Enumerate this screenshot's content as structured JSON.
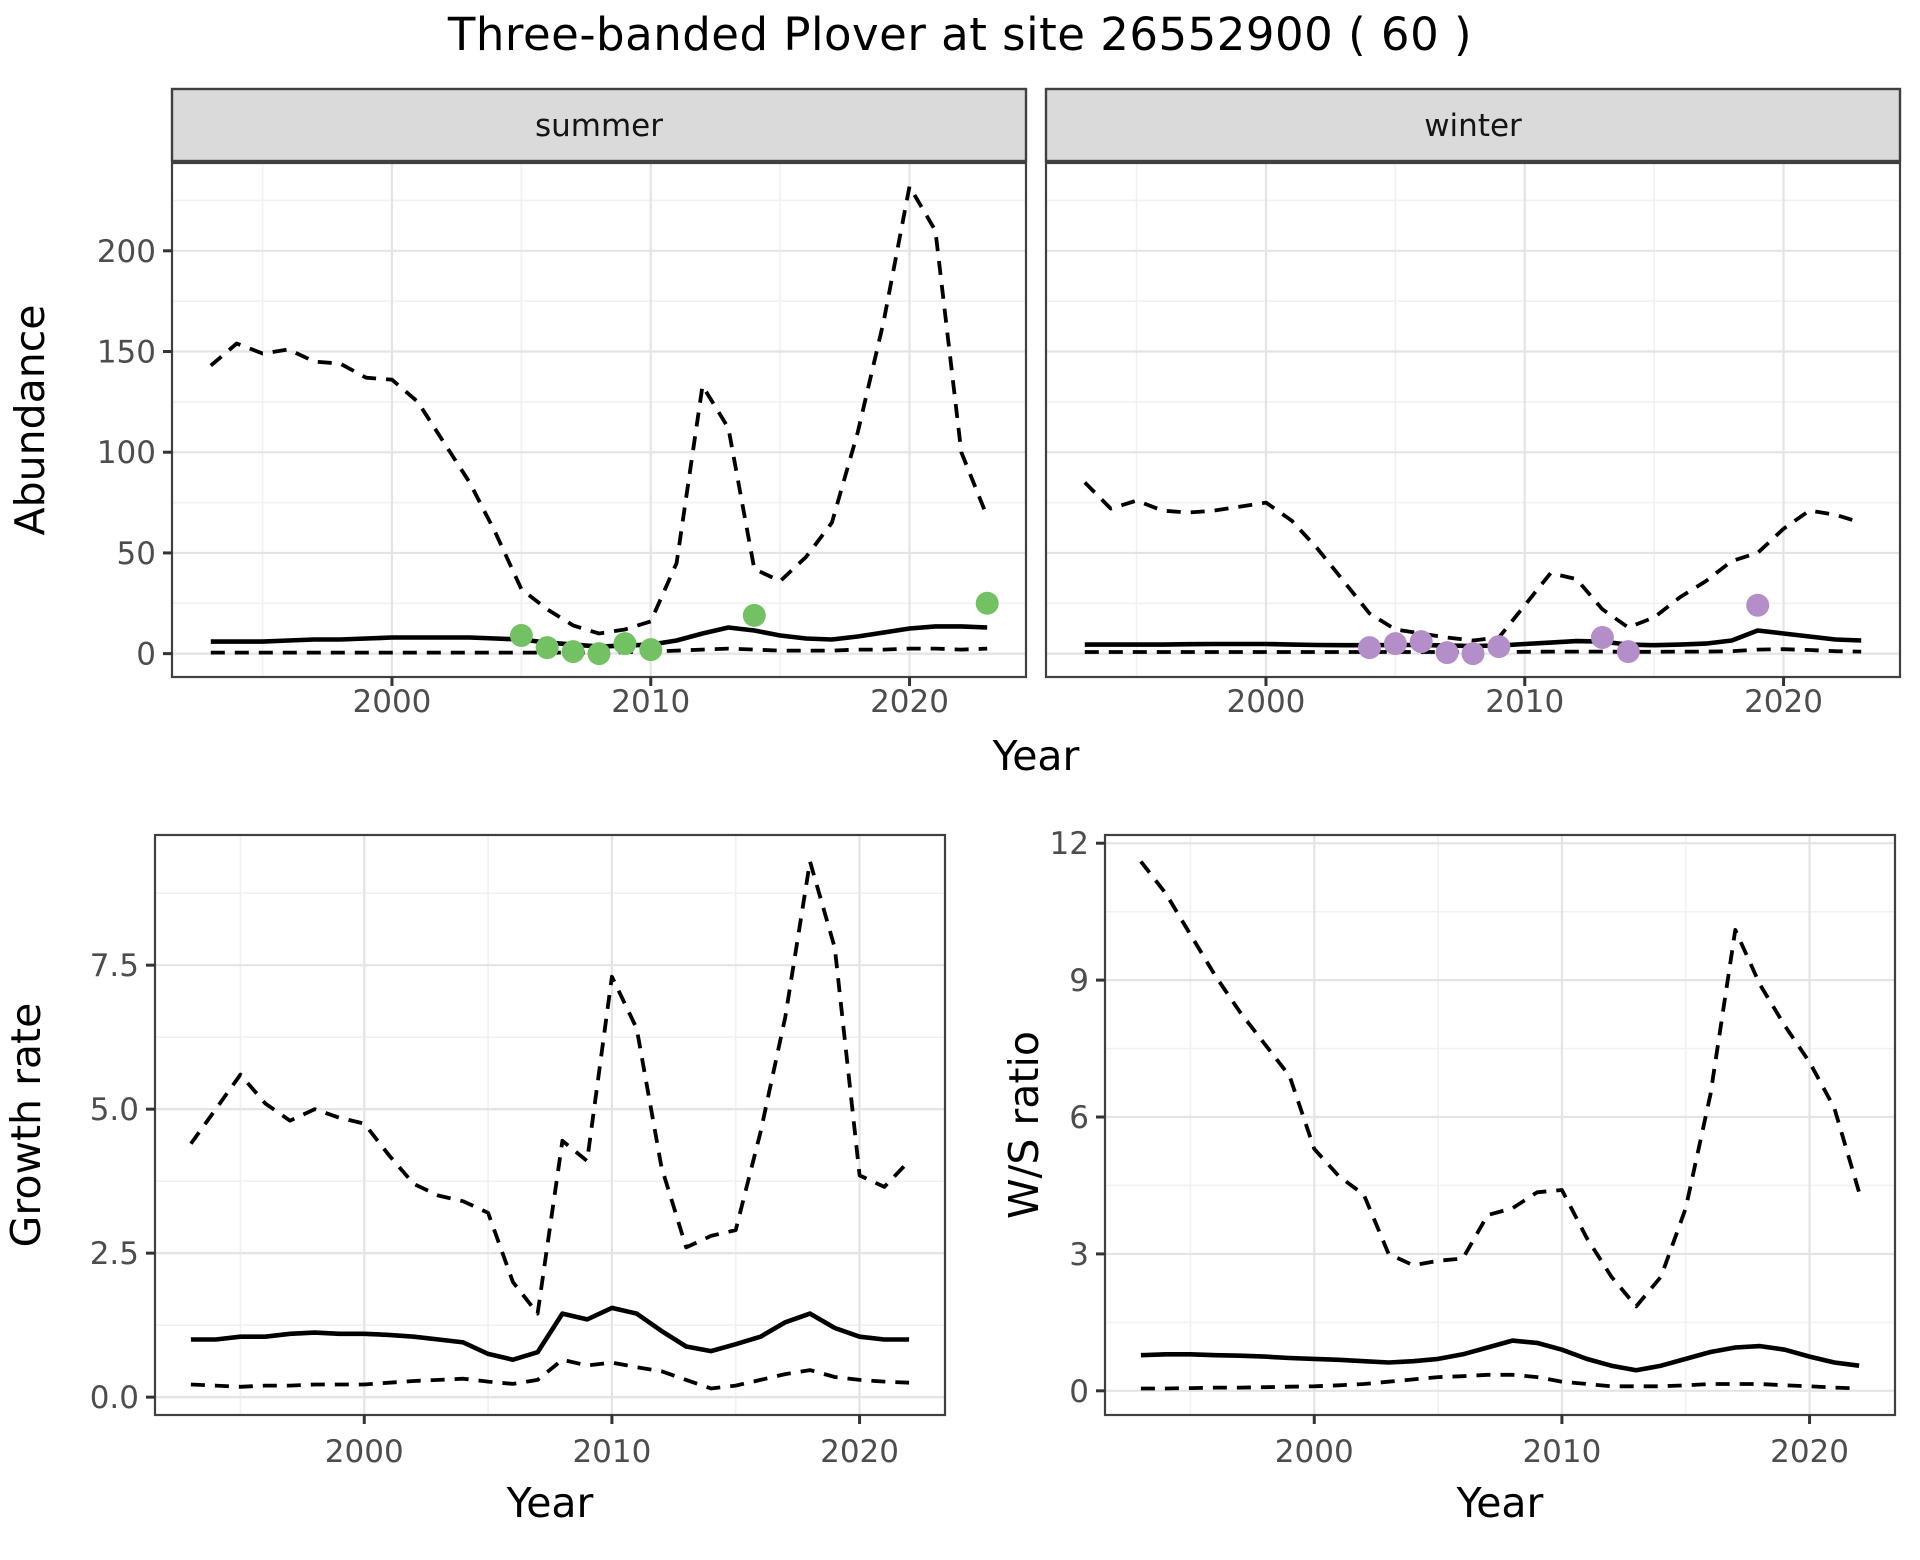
{
  "title": "Three-banded Plover at site 26552900 ( 60 )",
  "shared_x_label": "Year",
  "colors": {
    "summer_point": "#72C163",
    "winter_point": "#B48EC8",
    "line": "#000000",
    "strip_bg": "#DADADA",
    "strip_text": "#141414",
    "panel_bg": "#FFFFFF",
    "grid_major": "#E4E4E4",
    "grid_minor": "#F1F1F1",
    "panel_border": "#404040",
    "tick_mark": "#333333",
    "tick_label": "#4D4D4D",
    "axis_title": "#000000"
  },
  "chart_data": [
    {
      "type": "line",
      "strip_label": "summer",
      "ylabel": "Abundance",
      "xlabel": null,
      "xlim": [
        1991.5,
        2024.5
      ],
      "ylim": [
        -11.6,
        243.6
      ],
      "x_ticks": [
        2000,
        2010,
        2020
      ],
      "x_tick_labels": [
        "2000",
        "2010",
        "2020"
      ],
      "x_minor": [
        1995,
        2005,
        2015
      ],
      "y_ticks": [
        0,
        50,
        100,
        150,
        200
      ],
      "y_tick_labels": [
        "0",
        "50",
        "100",
        "150",
        "200"
      ],
      "y_minor": [
        25,
        75,
        125,
        175,
        225
      ],
      "grid": true,
      "series": [
        {
          "name": "lower-ci",
          "style": "dashed",
          "x": [
            1993,
            1994,
            1995,
            1996,
            1997,
            1998,
            1999,
            2000,
            2001,
            2002,
            2003,
            2004,
            2005,
            2006,
            2007,
            2008,
            2009,
            2010,
            2011,
            2012,
            2013,
            2014,
            2015,
            2016,
            2017,
            2018,
            2019,
            2020,
            2021,
            2022,
            2023
          ],
          "y": [
            0.5,
            0.5,
            0.5,
            0.5,
            0.5,
            0.5,
            0.5,
            0.5,
            0.5,
            0.5,
            0.5,
            0.5,
            0.5,
            0.5,
            0.5,
            0.5,
            0.7,
            1,
            1.5,
            2,
            2.5,
            2,
            1.5,
            1.5,
            1.5,
            2,
            2,
            2.5,
            2.5,
            2,
            2.5
          ]
        },
        {
          "name": "upper-ci",
          "style": "dashed",
          "x": [
            1993,
            1994,
            1995,
            1996,
            1997,
            1998,
            1999,
            2000,
            2001,
            2002,
            2003,
            2004,
            2005,
            2006,
            2007,
            2008,
            2009,
            2010,
            2011,
            2012,
            2013,
            2014,
            2015,
            2016,
            2017,
            2018,
            2019,
            2020,
            2021,
            2022,
            2023
          ],
          "y": [
            143,
            154,
            149,
            151,
            145,
            144,
            137,
            136,
            125,
            105,
            85,
            60,
            32,
            22,
            14,
            10,
            12,
            16,
            45,
            133,
            112,
            42,
            36,
            48,
            65,
            110,
            165,
            232,
            210,
            100,
            68
          ]
        },
        {
          "name": "median",
          "style": "solid",
          "x": [
            1993,
            1994,
            1995,
            1996,
            1997,
            1998,
            1999,
            2000,
            2001,
            2002,
            2003,
            2004,
            2005,
            2006,
            2007,
            2008,
            2009,
            2010,
            2011,
            2012,
            2013,
            2014,
            2015,
            2016,
            2017,
            2018,
            2019,
            2020,
            2021,
            2022,
            2023
          ],
          "y": [
            6,
            6,
            6,
            6.5,
            7,
            7,
            7.5,
            8,
            8,
            8,
            8,
            7.5,
            7,
            5.5,
            4.5,
            3.5,
            4,
            4.5,
            6.5,
            10,
            13,
            11.5,
            9,
            7.5,
            7,
            8.5,
            10.5,
            12.5,
            13.5,
            13.5,
            13
          ]
        }
      ],
      "points": {
        "name": "observed-count-summer",
        "color": "#72C163",
        "x": [
          2005,
          2006,
          2007,
          2008,
          2009,
          2010,
          2014,
          2023
        ],
        "y": [
          9,
          3,
          1,
          0,
          5,
          2,
          19,
          25
        ]
      }
    },
    {
      "type": "line",
      "strip_label": "winter",
      "ylabel": null,
      "xlabel": null,
      "xlim": [
        1991.5,
        2024.5
      ],
      "ylim": [
        -11.6,
        243.6
      ],
      "x_ticks": [
        2000,
        2010,
        2020
      ],
      "x_tick_labels": [
        "2000",
        "2010",
        "2020"
      ],
      "x_minor": [
        1995,
        2005,
        2015
      ],
      "y_ticks": [
        0,
        50,
        100,
        150,
        200
      ],
      "y_tick_labels": [
        "0",
        "50",
        "100",
        "150",
        "200"
      ],
      "y_minor": [
        25,
        75,
        125,
        175,
        225
      ],
      "grid": true,
      "series": [
        {
          "name": "lower-ci",
          "style": "dashed",
          "x": [
            1993,
            1994,
            1995,
            1996,
            1997,
            1998,
            1999,
            2000,
            2001,
            2002,
            2003,
            2004,
            2005,
            2006,
            2007,
            2008,
            2009,
            2010,
            2011,
            2012,
            2013,
            2014,
            2015,
            2016,
            2017,
            2018,
            2019,
            2020,
            2021,
            2022,
            2023
          ],
          "y": [
            0.8,
            0.8,
            0.8,
            0.8,
            0.8,
            0.8,
            0.8,
            0.8,
            0.8,
            0.8,
            0.8,
            0.8,
            0.8,
            0.8,
            0.8,
            0.8,
            0.8,
            0.9,
            1,
            1,
            1,
            0.9,
            0.9,
            1,
            1,
            1.2,
            2,
            2.2,
            1.8,
            1.2,
            1
          ]
        },
        {
          "name": "upper-ci",
          "style": "dashed",
          "x": [
            1993,
            1994,
            1995,
            1996,
            1997,
            1998,
            1999,
            2000,
            2001,
            2002,
            2003,
            2004,
            2005,
            2006,
            2007,
            2008,
            2009,
            2010,
            2011,
            2012,
            2013,
            2014,
            2015,
            2016,
            2017,
            2018,
            2019,
            2020,
            2021,
            2022,
            2023
          ],
          "y": [
            85,
            72,
            76,
            71,
            70,
            71,
            73,
            75,
            66,
            52,
            36,
            20,
            12,
            10,
            8,
            6.5,
            8,
            24,
            40,
            37,
            22,
            13,
            18,
            28,
            36,
            46,
            50,
            62,
            71,
            69,
            65
          ]
        },
        {
          "name": "median",
          "style": "solid",
          "x": [
            1993,
            1994,
            1995,
            1996,
            1997,
            1998,
            1999,
            2000,
            2001,
            2002,
            2003,
            2004,
            2005,
            2006,
            2007,
            2008,
            2009,
            2010,
            2011,
            2012,
            2013,
            2014,
            2015,
            2016,
            2017,
            2018,
            2019,
            2020,
            2021,
            2022,
            2023
          ],
          "y": [
            4.5,
            4.5,
            4.5,
            4.5,
            4.7,
            4.8,
            4.8,
            4.8,
            4.5,
            4.3,
            4.2,
            4.2,
            4.3,
            4.3,
            4,
            3.8,
            4,
            4.8,
            5.5,
            6.2,
            6,
            4.5,
            4.2,
            4.5,
            5,
            6.5,
            11.5,
            10,
            8.5,
            7,
            6.5
          ]
        }
      ],
      "points": {
        "name": "observed-count-winter",
        "color": "#B48EC8",
        "x": [
          2004,
          2005,
          2006,
          2007,
          2008,
          2009,
          2013,
          2014,
          2019
        ],
        "y": [
          3,
          5,
          6,
          0.5,
          0,
          3.5,
          8,
          1,
          24
        ]
      }
    },
    {
      "type": "line",
      "strip_label": null,
      "ylabel": "Growth rate",
      "xlabel": "Year",
      "xlim": [
        1991.55,
        2023.45
      ],
      "ylim": [
        -0.31,
        9.76
      ],
      "x_ticks": [
        2000,
        2010,
        2020
      ],
      "x_tick_labels": [
        "2000",
        "2010",
        "2020"
      ],
      "x_minor": [
        1995,
        2005,
        2015
      ],
      "y_ticks": [
        0,
        2.5,
        5,
        7.5
      ],
      "y_tick_labels": [
        "0.0",
        "2.5",
        "5.0",
        "7.5"
      ],
      "y_minor": [
        1.25,
        3.75,
        6.25,
        8.75
      ],
      "grid": true,
      "series": [
        {
          "name": "lower-ci",
          "style": "dashed",
          "x": [
            1993,
            1994,
            1995,
            1996,
            1997,
            1998,
            1999,
            2000,
            2001,
            2002,
            2003,
            2004,
            2005,
            2006,
            2007,
            2008,
            2009,
            2010,
            2011,
            2012,
            2013,
            2014,
            2015,
            2016,
            2017,
            2018,
            2019,
            2020,
            2021,
            2022
          ],
          "y": [
            0.22,
            0.2,
            0.18,
            0.2,
            0.2,
            0.22,
            0.22,
            0.22,
            0.25,
            0.28,
            0.3,
            0.32,
            0.27,
            0.23,
            0.3,
            0.65,
            0.55,
            0.6,
            0.52,
            0.45,
            0.3,
            0.15,
            0.2,
            0.3,
            0.4,
            0.47,
            0.35,
            0.3,
            0.27,
            0.25
          ]
        },
        {
          "name": "upper-ci",
          "style": "dashed",
          "x": [
            1993,
            1994,
            1995,
            1996,
            1997,
            1998,
            1999,
            2000,
            2001,
            2002,
            2003,
            2004,
            2005,
            2006,
            2007,
            2008,
            2009,
            2010,
            2011,
            2012,
            2013,
            2014,
            2015,
            2016,
            2017,
            2018,
            2019,
            2020,
            2021,
            2022
          ],
          "y": [
            4.4,
            5.0,
            5.6,
            5.1,
            4.8,
            5.0,
            4.85,
            4.75,
            4.2,
            3.7,
            3.5,
            3.4,
            3.2,
            2.0,
            1.45,
            4.45,
            4.1,
            7.3,
            6.4,
            4.0,
            2.6,
            2.8,
            2.9,
            4.6,
            6.6,
            9.3,
            7.8,
            3.85,
            3.65,
            4.1
          ]
        },
        {
          "name": "median",
          "style": "solid",
          "x": [
            1993,
            1994,
            1995,
            1996,
            1997,
            1998,
            1999,
            2000,
            2001,
            2002,
            2003,
            2004,
            2005,
            2006,
            2007,
            2008,
            2009,
            2010,
            2011,
            2012,
            2013,
            2014,
            2015,
            2016,
            2017,
            2018,
            2019,
            2020,
            2021,
            2022
          ],
          "y": [
            1.0,
            1.0,
            1.05,
            1.05,
            1.1,
            1.12,
            1.1,
            1.1,
            1.08,
            1.05,
            1.0,
            0.95,
            0.75,
            0.65,
            0.78,
            1.45,
            1.35,
            1.55,
            1.45,
            1.15,
            0.88,
            0.8,
            0.92,
            1.05,
            1.3,
            1.45,
            1.2,
            1.05,
            1.0,
            1.0
          ]
        }
      ],
      "points": null
    },
    {
      "type": "line",
      "strip_label": null,
      "ylabel": "W/S ratio",
      "xlabel": "Year",
      "xlim": [
        1991.55,
        2023.45
      ],
      "ylim": [
        -0.53,
        12.18
      ],
      "x_ticks": [
        2000,
        2010,
        2020
      ],
      "x_tick_labels": [
        "2000",
        "2010",
        "2020"
      ],
      "x_minor": [
        1995,
        2005,
        2015
      ],
      "y_ticks": [
        0,
        3,
        6,
        9,
        12
      ],
      "y_tick_labels": [
        "0",
        "3",
        "6",
        "9",
        "12"
      ],
      "y_minor": [
        1.5,
        4.5,
        7.5,
        10.5
      ],
      "grid": true,
      "series": [
        {
          "name": "lower-ci",
          "style": "dashed",
          "x": [
            1993,
            1994,
            1995,
            1996,
            1997,
            1998,
            1999,
            2000,
            2001,
            2002,
            2003,
            2004,
            2005,
            2006,
            2007,
            2008,
            2009,
            2010,
            2011,
            2012,
            2013,
            2014,
            2015,
            2016,
            2017,
            2018,
            2019,
            2020,
            2021,
            2022
          ],
          "y": [
            0.05,
            0.05,
            0.06,
            0.07,
            0.07,
            0.08,
            0.09,
            0.1,
            0.12,
            0.15,
            0.2,
            0.25,
            0.3,
            0.32,
            0.35,
            0.35,
            0.3,
            0.2,
            0.15,
            0.1,
            0.1,
            0.1,
            0.12,
            0.15,
            0.15,
            0.15,
            0.12,
            0.1,
            0.07,
            0.05
          ]
        },
        {
          "name": "upper-ci",
          "style": "dashed",
          "x": [
            1993,
            1994,
            1995,
            1996,
            1997,
            1998,
            1999,
            2000,
            2001,
            2002,
            2003,
            2004,
            2005,
            2006,
            2007,
            2008,
            2009,
            2010,
            2011,
            2012,
            2013,
            2014,
            2015,
            2016,
            2017,
            2018,
            2019,
            2020,
            2021,
            2022
          ],
          "y": [
            11.6,
            10.9,
            10.0,
            9.1,
            8.3,
            7.6,
            6.9,
            5.3,
            4.7,
            4.3,
            3.0,
            2.75,
            2.85,
            2.9,
            3.85,
            4.0,
            4.35,
            4.4,
            3.35,
            2.5,
            1.85,
            2.5,
            4.0,
            6.5,
            10.1,
            8.9,
            8.0,
            7.2,
            6.2,
            4.35
          ]
        },
        {
          "name": "median",
          "style": "solid",
          "x": [
            1993,
            1994,
            1995,
            1996,
            1997,
            1998,
            1999,
            2000,
            2001,
            2002,
            2003,
            2004,
            2005,
            2006,
            2007,
            2008,
            2009,
            2010,
            2011,
            2012,
            2013,
            2014,
            2015,
            2016,
            2017,
            2018,
            2019,
            2020,
            2021,
            2022
          ],
          "y": [
            0.78,
            0.8,
            0.8,
            0.78,
            0.77,
            0.75,
            0.72,
            0.7,
            0.68,
            0.65,
            0.62,
            0.65,
            0.7,
            0.8,
            0.95,
            1.1,
            1.05,
            0.9,
            0.7,
            0.55,
            0.45,
            0.55,
            0.7,
            0.85,
            0.95,
            0.98,
            0.9,
            0.75,
            0.62,
            0.55
          ]
        }
      ],
      "points": null
    }
  ]
}
